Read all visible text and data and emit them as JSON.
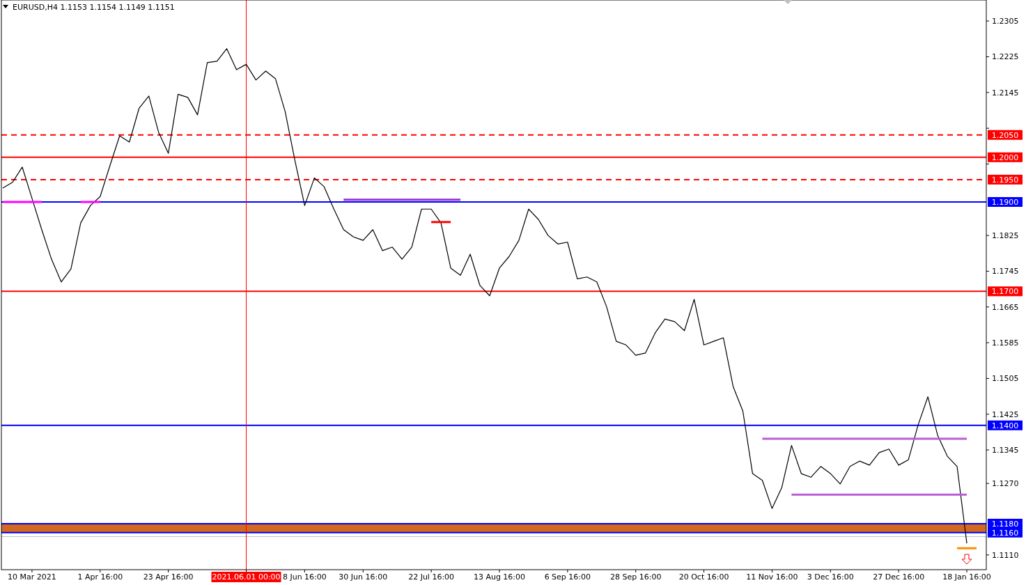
{
  "chart_data": {
    "type": "line",
    "title": "EURUSD,H4  1.1153 1.1154 1.1149 1.1151",
    "categories": [
      null,
      null,
      null,
      "10 Mar 2021",
      null,
      null,
      null,
      null,
      null,
      null,
      "1 Apr 16:00",
      null,
      null,
      null,
      null,
      null,
      null,
      "23 Apr 16:00",
      null,
      null,
      null,
      null,
      null,
      null,
      null,
      "2021.06.01 00:00",
      null,
      null,
      null,
      null,
      null,
      "8 Jun 16:00",
      null,
      null,
      null,
      null,
      null,
      "30 Jun 16:00",
      null,
      null,
      null,
      null,
      null,
      null,
      "22 Jul 16:00",
      null,
      null,
      null,
      null,
      null,
      null,
      "13 Aug 16:00",
      null,
      null,
      null,
      null,
      null,
      null,
      "6 Sep 16:00",
      null,
      null,
      null,
      null,
      null,
      null,
      "28 Sep 16:00",
      null,
      null,
      null,
      null,
      null,
      null,
      "20 Oct 16:00",
      null,
      null,
      null,
      null,
      null,
      null,
      "11 Nov 16:00",
      null,
      null,
      null,
      null,
      null,
      "3 Dec 16:00",
      null,
      null,
      null,
      null,
      null,
      null,
      "27 Dec 16:00",
      null,
      null,
      null,
      null,
      null,
      null,
      "18 Jan 16:00",
      null,
      null
    ],
    "series": [
      {
        "color": "#000000",
        "values": [
          1.1931,
          1.1944,
          1.1978,
          1.1908,
          1.1838,
          1.1772,
          1.1721,
          1.175,
          1.1853,
          1.1892,
          1.1912,
          1.1981,
          1.2048,
          1.2034,
          1.211,
          1.2137,
          1.2056,
          1.2009,
          1.2141,
          1.2134,
          1.2095,
          1.2212,
          1.2215,
          1.2243,
          1.2196,
          1.2208,
          1.2173,
          1.2193,
          1.2176,
          1.2102,
          1.1993,
          1.1892,
          1.1954,
          1.1934,
          1.1884,
          1.1838,
          1.1822,
          1.1814,
          1.1838,
          1.1791,
          1.1799,
          1.1772,
          1.1799,
          1.1884,
          1.1884,
          1.1853,
          1.1752,
          1.1736,
          1.1783,
          1.1713,
          1.169,
          1.1752,
          1.1778,
          1.1814,
          1.1884,
          1.1861,
          1.1825,
          1.1806,
          1.181,
          1.1728,
          1.1732,
          1.1721,
          1.1666,
          1.1588,
          1.158,
          1.1557,
          1.1562,
          1.1607,
          1.1638,
          1.1632,
          1.1612,
          1.1682,
          1.158,
          1.1588,
          1.1596,
          1.1487,
          1.1432,
          1.1292,
          1.1277,
          1.1214,
          1.1261,
          1.1355,
          1.1292,
          1.1284,
          1.1308,
          1.1292,
          1.1269,
          1.1308,
          1.132,
          1.1311,
          1.1339,
          1.1347,
          1.1311,
          1.1323,
          1.1401,
          1.1464,
          1.1378,
          1.1331,
          1.1308,
          1.1136,
          null,
          null
        ]
      },
      {
        "color": "#ff00ff",
        "values": [
          1.19,
          null,
          null,
          null,
          1.19,
          null,
          null,
          null,
          null,
          null,
          null,
          null,
          null,
          null,
          null,
          null,
          null,
          null,
          null,
          null,
          null,
          null,
          null,
          null,
          null,
          null,
          null,
          null,
          null,
          null,
          null,
          null,
          null,
          null,
          null,
          null,
          null,
          null,
          null,
          null,
          null,
          null,
          null,
          null,
          null,
          null,
          null,
          null,
          null,
          null,
          null,
          null,
          null,
          null,
          null,
          null,
          null,
          null,
          null,
          null,
          null,
          null,
          null,
          null,
          null,
          null,
          null,
          null,
          null,
          null,
          null,
          null,
          null,
          null,
          null,
          null,
          null,
          null,
          null,
          null,
          null,
          null,
          null,
          null,
          null,
          null,
          null,
          null,
          null,
          null,
          null,
          null,
          null,
          null,
          null,
          null,
          null,
          null,
          null,
          null,
          null,
          null
        ]
      },
      {
        "color": "#ff00ff",
        "values": [
          null,
          null,
          null,
          null,
          null,
          null,
          null,
          null,
          1.19,
          null,
          1.19,
          null,
          null,
          null,
          null,
          null,
          null,
          null,
          null,
          null,
          null,
          null,
          null,
          null,
          null,
          null,
          null,
          null,
          null,
          null,
          null,
          null,
          null,
          null,
          null,
          null,
          null,
          null,
          null,
          null,
          null,
          null,
          null,
          null,
          null,
          null,
          null,
          null,
          null,
          null,
          null,
          null,
          null,
          null,
          null,
          null,
          null,
          null,
          null,
          null,
          null,
          null,
          null,
          null,
          null,
          null,
          null,
          null,
          null,
          null,
          null,
          null,
          null,
          null,
          null,
          null,
          null,
          null,
          null,
          null,
          null,
          null,
          null,
          null,
          null,
          null,
          null,
          null,
          null,
          null,
          null,
          null,
          null,
          null,
          null,
          null,
          null,
          null,
          null,
          null,
          null,
          null
        ]
      },
      {
        "color": "#9932cc",
        "values": [
          null,
          null,
          null,
          null,
          null,
          null,
          null,
          null,
          null,
          null,
          null,
          null,
          null,
          null,
          null,
          null,
          null,
          null,
          null,
          null,
          null,
          null,
          null,
          null,
          null,
          null,
          null,
          null,
          null,
          null,
          null,
          null,
          null,
          null,
          null,
          1.1905,
          null,
          null,
          null,
          null,
          null,
          null,
          null,
          null,
          null,
          null,
          null,
          1.1905,
          null,
          null,
          null,
          null,
          null,
          null,
          null,
          null,
          null,
          null,
          null,
          null,
          null,
          null,
          null,
          null,
          null,
          null,
          null,
          null,
          null,
          null,
          null,
          null,
          null,
          null,
          null,
          null,
          null,
          null,
          null,
          null,
          null,
          null,
          null,
          null,
          null,
          null,
          null,
          null,
          null,
          null,
          null,
          null,
          null,
          null,
          null,
          null,
          null,
          null,
          null,
          null,
          null,
          null
        ]
      },
      {
        "color": "#ff0000",
        "values": [
          null,
          null,
          null,
          null,
          null,
          null,
          null,
          null,
          null,
          null,
          null,
          null,
          null,
          null,
          null,
          null,
          null,
          null,
          null,
          null,
          null,
          null,
          null,
          null,
          null,
          null,
          null,
          null,
          null,
          null,
          null,
          null,
          null,
          null,
          null,
          null,
          null,
          null,
          null,
          null,
          null,
          null,
          null,
          null,
          1.1855,
          null,
          1.1855,
          null,
          null,
          null,
          null,
          null,
          null,
          null,
          null,
          null,
          null,
          null,
          null,
          null,
          null,
          null,
          null,
          null,
          null,
          null,
          null,
          null,
          null,
          null,
          null,
          null,
          null,
          null,
          null,
          null,
          null,
          null,
          null,
          null,
          null,
          null,
          null,
          null,
          null,
          null,
          null,
          null,
          null,
          null,
          null,
          null,
          null,
          null,
          null,
          null,
          null,
          null,
          null,
          null,
          null,
          null
        ]
      },
      {
        "color": "#b65fd6",
        "values": [
          null,
          null,
          null,
          null,
          null,
          null,
          null,
          null,
          null,
          null,
          null,
          null,
          null,
          null,
          null,
          null,
          null,
          null,
          null,
          null,
          null,
          null,
          null,
          null,
          null,
          null,
          null,
          null,
          null,
          null,
          null,
          null,
          null,
          null,
          null,
          null,
          null,
          null,
          null,
          null,
          null,
          null,
          null,
          null,
          null,
          null,
          null,
          null,
          null,
          null,
          null,
          null,
          null,
          null,
          null,
          null,
          null,
          null,
          null,
          null,
          null,
          null,
          null,
          null,
          null,
          null,
          null,
          null,
          null,
          null,
          null,
          null,
          null,
          null,
          null,
          null,
          null,
          null,
          1.137,
          null,
          null,
          null,
          null,
          null,
          null,
          null,
          null,
          null,
          null,
          null,
          null,
          null,
          null,
          null,
          null,
          null,
          null,
          null,
          null,
          1.137,
          null,
          null
        ]
      },
      {
        "color": "#b65fd6",
        "values": [
          null,
          null,
          null,
          null,
          null,
          null,
          null,
          null,
          null,
          null,
          null,
          null,
          null,
          null,
          null,
          null,
          null,
          null,
          null,
          null,
          null,
          null,
          null,
          null,
          null,
          null,
          null,
          null,
          null,
          null,
          null,
          null,
          null,
          null,
          null,
          null,
          null,
          null,
          null,
          null,
          null,
          null,
          null,
          null,
          null,
          null,
          null,
          null,
          null,
          null,
          null,
          null,
          null,
          null,
          null,
          null,
          null,
          null,
          null,
          null,
          null,
          null,
          null,
          null,
          null,
          null,
          null,
          null,
          null,
          null,
          null,
          null,
          null,
          null,
          null,
          null,
          null,
          null,
          null,
          null,
          null,
          1.1245,
          null,
          null,
          null,
          null,
          null,
          null,
          null,
          null,
          null,
          null,
          null,
          null,
          null,
          null,
          null,
          null,
          null,
          1.1245,
          null,
          null
        ]
      },
      {
        "color": "#ff8c00",
        "values": [
          null,
          null,
          null,
          null,
          null,
          null,
          null,
          null,
          null,
          null,
          null,
          null,
          null,
          null,
          null,
          null,
          null,
          null,
          null,
          null,
          null,
          null,
          null,
          null,
          null,
          null,
          null,
          null,
          null,
          null,
          null,
          null,
          null,
          null,
          null,
          null,
          null,
          null,
          null,
          null,
          null,
          null,
          null,
          null,
          null,
          null,
          null,
          null,
          null,
          null,
          null,
          null,
          null,
          null,
          null,
          null,
          null,
          null,
          null,
          null,
          null,
          null,
          null,
          null,
          null,
          null,
          null,
          null,
          null,
          null,
          null,
          null,
          null,
          null,
          null,
          null,
          null,
          null,
          null,
          null,
          null,
          null,
          null,
          null,
          null,
          null,
          null,
          null,
          null,
          null,
          null,
          null,
          null,
          null,
          null,
          null,
          null,
          null,
          1.1125,
          null,
          1.1125,
          null
        ]
      }
    ],
    "ylim": [
      1.1077,
      1.2352
    ],
    "yticks": [
      1.2305,
      1.2225,
      1.2145,
      {
        "value": 1.2065,
        "label": null
      },
      {
        "value": 1.1985,
        "label": null
      },
      1.1825,
      1.1745,
      1.1665,
      1.1585,
      1.1505,
      1.1425,
      1.1345,
      {
        "value": 1.127,
        "label": "1.1270"
      },
      {
        "value": 1.111,
        "label": "1.1110"
      }
    ],
    "ref_lines": [
      {
        "axis": "x",
        "value": "2021.06.01 00:00",
        "color": "#ff0000"
      },
      {
        "axis": "y",
        "value": 1.205,
        "label": "1.2050",
        "color": "#ff0000",
        "line_style": "dashed"
      },
      {
        "axis": "y",
        "value": 1.2,
        "label": "1.2000",
        "color": "#ff0000",
        "line_style": "solid"
      },
      {
        "axis": "y",
        "value": 1.195,
        "label": "1.1950",
        "color": "#ff0000",
        "line_style": "dashed"
      },
      {
        "axis": "y",
        "value": 1.19,
        "label": "1.1900",
        "color": "#0000ff",
        "line_style": "solid"
      },
      {
        "axis": "y",
        "value": 1.17,
        "label": "1.1700",
        "color": "#ff0000",
        "line_style": "solid"
      },
      {
        "axis": "y",
        "value": 1.14,
        "label": "1.1400",
        "color": "#0000ff",
        "line_style": "solid"
      },
      {
        "axis": "y",
        "value": 1.118,
        "label": "1.1180",
        "color": "#0000ff",
        "line_style": "solid"
      },
      {
        "axis": "y",
        "value": 1.116,
        "label": "1.1160",
        "color": "#0000ff",
        "line_style": "solid"
      },
      {
        "axis": "y",
        "value": 1.1151,
        "color": "#c0c0c0",
        "line_style": "solid"
      }
    ],
    "bands": [
      {
        "axis": "y",
        "from": 1.116,
        "to": 1.118,
        "color": "#d2691e"
      }
    ]
  }
}
